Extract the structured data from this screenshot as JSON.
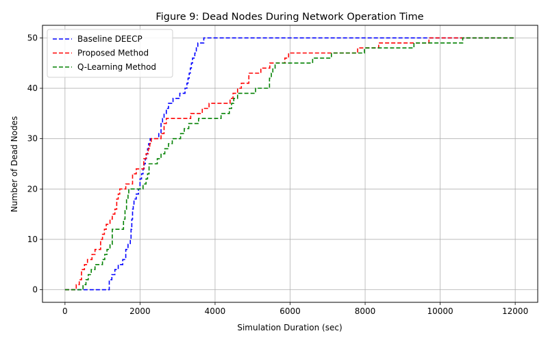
{
  "chart_data": {
    "type": "line",
    "title": "Figure 9: Dead Nodes During Network Operation Time",
    "xlabel": "Simulation Duration (sec)",
    "ylabel": "Number of Dead Nodes",
    "xlim": [
      -600,
      12600
    ],
    "ylim": [
      -2.5,
      52.5
    ],
    "xticks": [
      0,
      2000,
      4000,
      6000,
      8000,
      10000,
      12000
    ],
    "yticks": [
      0,
      10,
      20,
      30,
      40,
      50
    ],
    "grid": true,
    "legend_position": "top-left",
    "series": [
      {
        "name": "Baseline DEECP",
        "color": "#0000ff",
        "x": [
          0,
          1180,
          1250,
          1330,
          1420,
          1540,
          1620,
          1680,
          1740,
          1760,
          1780,
          1800,
          1820,
          1840,
          1900,
          1960,
          2000,
          2040,
          2080,
          2110,
          2140,
          2170,
          2200,
          2230,
          2270,
          2310,
          2360,
          2400,
          2450,
          2500,
          2560,
          2600,
          2640,
          2700,
          2760,
          2880,
          2960,
          3060,
          3200,
          3250,
          3280,
          3310,
          3340,
          3370,
          3400,
          3430,
          3460,
          3500,
          3540,
          3580,
          3620,
          3700,
          3840,
          3900,
          12000
        ],
        "y": [
          0,
          2,
          3,
          4,
          5,
          6,
          8,
          9,
          10,
          12,
          14,
          16,
          17,
          18,
          19,
          20,
          22,
          23,
          24,
          25,
          26,
          27,
          28,
          29,
          30,
          30,
          30,
          30,
          30,
          31,
          33,
          34,
          35,
          36,
          37,
          38,
          38,
          39,
          40,
          41,
          42,
          43,
          44,
          45,
          46,
          46,
          47,
          48,
          49,
          49,
          49,
          50,
          50,
          50,
          50
        ]
      },
      {
        "name": "Proposed Method",
        "color": "#ff0000",
        "x": [
          0,
          300,
          380,
          440,
          520,
          600,
          650,
          720,
          800,
          950,
          1000,
          1050,
          1100,
          1200,
          1260,
          1330,
          1380,
          1420,
          1460,
          1560,
          1620,
          1680,
          1800,
          1900,
          2000,
          2100,
          2160,
          2220,
          2260,
          2300,
          2340,
          2560,
          2640,
          2700,
          2760,
          2800,
          3350,
          3400,
          3660,
          3840,
          4100,
          4300,
          4400,
          4480,
          4600,
          4700,
          4900,
          5000,
          5220,
          5460,
          5600,
          5720,
          5860,
          5960,
          6000,
          7100,
          7200,
          7800,
          8360,
          8400,
          9700,
          10000,
          10600,
          12000
        ],
        "y": [
          0,
          1,
          2,
          4,
          5,
          6,
          6,
          7,
          8,
          10,
          11,
          12,
          13,
          14,
          15,
          16,
          18,
          19,
          20,
          20,
          21,
          21,
          23,
          24,
          24,
          26,
          27,
          28,
          29,
          30,
          30,
          31,
          33,
          34,
          34,
          34,
          35,
          35,
          36,
          37,
          37,
          37,
          38,
          39,
          40,
          41,
          43,
          43,
          44,
          45,
          45,
          45,
          46,
          47,
          47,
          47,
          47,
          48,
          49,
          49,
          50,
          50,
          50,
          50
        ],
        "note": null
      },
      {
        "name": "Q-Learning Method",
        "color": "#008000",
        "x": [
          0,
          480,
          560,
          620,
          700,
          800,
          1000,
          1060,
          1120,
          1200,
          1260,
          1360,
          1560,
          1600,
          1640,
          1680,
          1700,
          1720,
          1780,
          2080,
          2160,
          2200,
          2240,
          2300,
          2340,
          2460,
          2560,
          2660,
          2760,
          2860,
          2960,
          3080,
          3180,
          3300,
          3440,
          3560,
          3700,
          4060,
          4160,
          4380,
          4440,
          4500,
          4600,
          4700,
          5080,
          5450,
          5500,
          5540,
          5600,
          6000,
          6600,
          6700,
          7100,
          7200,
          7980,
          8100,
          9300,
          9400,
          10600,
          10700,
          12000
        ],
        "y": [
          0,
          1,
          2,
          3,
          4,
          5,
          6,
          7,
          8,
          9,
          12,
          12,
          14,
          16,
          18,
          19,
          20,
          20,
          20,
          21,
          22,
          23,
          25,
          25,
          25,
          26,
          27,
          28,
          29,
          30,
          30,
          31,
          32,
          33,
          33,
          34,
          34,
          34,
          35,
          36,
          37,
          38,
          39,
          39,
          40,
          42,
          43,
          44,
          45,
          45,
          46,
          46,
          47,
          47,
          48,
          48,
          49,
          49,
          50,
          50,
          50
        ]
      }
    ]
  }
}
